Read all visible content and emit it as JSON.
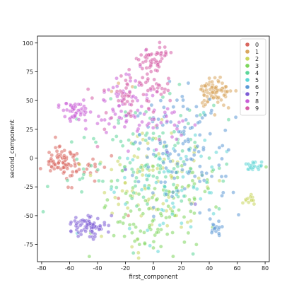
{
  "chart_data": {
    "type": "scatter",
    "title": "",
    "xlabel": "first_component",
    "ylabel": "second_component",
    "xlim": [
      -83,
      83
    ],
    "ylim": [
      -90,
      106
    ],
    "xticks": [
      -80,
      -60,
      -40,
      -20,
      0,
      20,
      40,
      60,
      80
    ],
    "yticks": [
      -75,
      -50,
      -25,
      0,
      25,
      50,
      75,
      100
    ],
    "grid": false,
    "legend_position": "top-right",
    "legend_title": "",
    "point_alpha": 0.55,
    "series": [
      {
        "name": "0",
        "color": "#d9665e",
        "clusters": [
          {
            "cx": -67,
            "cy": -2,
            "sx": 6,
            "sy": 6,
            "n": 70
          },
          {
            "cx": -52,
            "cy": -8,
            "sx": 8,
            "sy": 7,
            "n": 20
          }
        ],
        "points": [
          [
            -42,
            -20
          ],
          [
            -35,
            -8
          ],
          [
            -30,
            2
          ],
          [
            -25,
            -35
          ],
          [
            -18,
            -50
          ]
        ]
      },
      {
        "name": "1",
        "color": "#d9a65e",
        "clusters": [
          {
            "cx": 44,
            "cy": 57,
            "sx": 6,
            "sy": 6,
            "n": 80
          }
        ],
        "points": [
          [
            -30,
            58
          ],
          [
            -25,
            65
          ],
          [
            -15,
            62
          ],
          [
            35,
            48
          ],
          [
            52,
            62
          ]
        ]
      },
      {
        "name": "2",
        "color": "#c8d65c",
        "clusters": [
          {
            "cx": 0,
            "cy": -20,
            "sx": 20,
            "sy": 25,
            "n": 90
          },
          {
            "cx": 69,
            "cy": -36,
            "sx": 2,
            "sy": 2,
            "n": 12
          }
        ],
        "points": [
          [
            -30,
            -10
          ],
          [
            -35,
            -30
          ],
          [
            -45,
            -15
          ],
          [
            20,
            -60
          ],
          [
            30,
            10
          ]
        ]
      },
      {
        "name": "3",
        "color": "#7dd65c",
        "clusters": [
          {
            "cx": 0,
            "cy": -55,
            "sx": 18,
            "sy": 14,
            "n": 70
          },
          {
            "cx": 20,
            "cy": -20,
            "sx": 15,
            "sy": 15,
            "n": 30
          }
        ],
        "points": [
          [
            -35,
            -43
          ],
          [
            -30,
            -20
          ],
          [
            -10,
            -75
          ],
          [
            0,
            -78
          ],
          [
            25,
            -65
          ]
        ]
      },
      {
        "name": "4",
        "color": "#5cd699",
        "clusters": [
          {
            "cx": -5,
            "cy": 0,
            "sx": 25,
            "sy": 30,
            "n": 120
          }
        ],
        "points": [
          [
            -30,
            -25
          ],
          [
            -20,
            40
          ],
          [
            25,
            30
          ],
          [
            40,
            0
          ],
          [
            50,
            -20
          ]
        ]
      },
      {
        "name": "5",
        "color": "#5cd6d6",
        "clusters": [
          {
            "cx": 72,
            "cy": -6,
            "sx": 3,
            "sy": 3,
            "n": 20
          },
          {
            "cx": 10,
            "cy": -20,
            "sx": 20,
            "sy": 25,
            "n": 60
          }
        ],
        "points": [
          [
            -20,
            -40
          ],
          [
            -10,
            20
          ],
          [
            30,
            20
          ],
          [
            40,
            -30
          ],
          [
            45,
            5
          ]
        ]
      },
      {
        "name": "6",
        "color": "#5c99d6",
        "clusters": [
          {
            "cx": 20,
            "cy": 10,
            "sx": 18,
            "sy": 25,
            "n": 120
          },
          {
            "cx": 45,
            "cy": -62,
            "sx": 3,
            "sy": 3,
            "n": 15
          }
        ],
        "points": [
          [
            -15,
            -15
          ],
          [
            0,
            35
          ],
          [
            35,
            35
          ],
          [
            40,
            -45
          ],
          [
            50,
            -30
          ]
        ]
      },
      {
        "name": "7",
        "color": "#7d5cd6",
        "clusters": [
          {
            "cx": -47,
            "cy": -60,
            "sx": 6,
            "sy": 5,
            "n": 70
          }
        ],
        "points": [
          [
            -35,
            -58
          ],
          [
            -30,
            -50
          ],
          [
            -20,
            -10
          ],
          [
            10,
            5
          ],
          [
            30,
            -40
          ]
        ]
      },
      {
        "name": "8",
        "color": "#c85cd6",
        "clusters": [
          {
            "cx": -57,
            "cy": 42,
            "sx": 5,
            "sy": 5,
            "n": 45
          },
          {
            "cx": -20,
            "cy": 45,
            "sx": 12,
            "sy": 15,
            "n": 60
          },
          {
            "cx": 5,
            "cy": 30,
            "sx": 12,
            "sy": 10,
            "n": 25
          }
        ],
        "points": [
          [
            -45,
            40
          ],
          [
            -40,
            30
          ],
          [
            -5,
            55
          ],
          [
            15,
            40
          ],
          [
            20,
            20
          ]
        ]
      },
      {
        "name": "9",
        "color": "#d65ca6",
        "clusters": [
          {
            "cx": 2,
            "cy": 88,
            "sx": 6,
            "sy": 5,
            "n": 50
          },
          {
            "cx": -20,
            "cy": 55,
            "sx": 10,
            "sy": 10,
            "n": 40
          },
          {
            "cx": 5,
            "cy": 62,
            "sx": 6,
            "sy": 5,
            "n": 20
          }
        ],
        "points": [
          [
            -35,
            25
          ],
          [
            -40,
            10
          ],
          [
            -30,
            35
          ],
          [
            0,
            40
          ],
          [
            12,
            50
          ]
        ]
      }
    ]
  }
}
